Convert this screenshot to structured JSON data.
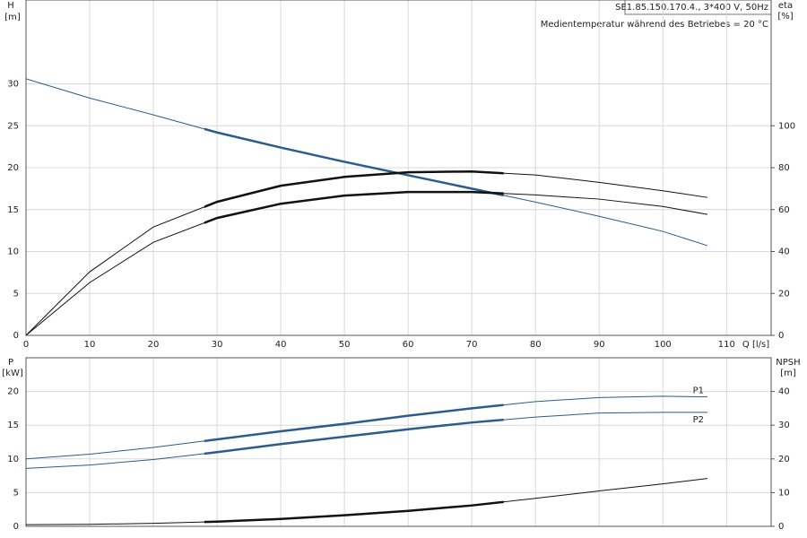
{
  "chart_data": [
    {
      "type": "line",
      "header": "SE1.85.150.170.4., 3*400 V, 50Hz",
      "note": "Medientemperatur während des Betriebes = 20 °C",
      "y_label": "H",
      "y_unit": "[m]",
      "y2_label": "eta",
      "y2_unit": "[%]",
      "x_label": "Q [l/s]",
      "x": [
        0,
        10,
        20,
        30,
        40,
        50,
        60,
        70,
        80,
        90,
        100,
        107
      ],
      "xlim": [
        0,
        117
      ],
      "xticks": [
        0,
        10,
        20,
        30,
        40,
        50,
        60,
        70,
        80,
        90,
        100,
        110
      ],
      "ylim": [
        0,
        40
      ],
      "yticks": [
        0,
        5,
        10,
        15,
        20,
        25,
        30
      ],
      "y2lim": [
        0,
        160
      ],
      "y2ticks": [
        0,
        20,
        40,
        60,
        80,
        100
      ],
      "grid": true,
      "highlight_range": [
        28,
        75
      ],
      "series": [
        {
          "color": "#2b5c8c",
          "values": [
            30.6,
            28.3,
            26.3,
            24.2,
            22.4,
            20.7,
            19.1,
            17.5,
            15.9,
            14.2,
            12.4,
            10.7
          ]
        },
        {
          "color": "#111111",
          "axis": "y2",
          "values": [
            0,
            30.3,
            51.7,
            63.7,
            71.4,
            75.6,
            77.8,
            78.2,
            76.5,
            73,
            69,
            65.8
          ]
        },
        {
          "color": "#111111",
          "axis": "y2",
          "values": [
            0,
            25.2,
            44.4,
            56,
            62.8,
            66.7,
            68.4,
            68.4,
            67,
            65,
            61.5,
            57.7
          ]
        }
      ]
    },
    {
      "type": "line",
      "y_label": "P",
      "y_unit": "[kW]",
      "y2_label": "NPSH",
      "y2_unit": "[m]",
      "x": [
        0,
        10,
        20,
        30,
        40,
        50,
        60,
        70,
        80,
        90,
        100,
        107
      ],
      "xlim": [
        0,
        117
      ],
      "xticks": [
        0,
        10,
        20,
        30,
        40,
        50,
        60,
        70,
        80,
        90,
        100,
        110
      ],
      "ylim": [
        0,
        25
      ],
      "yticks": [
        0,
        5,
        10,
        15,
        20
      ],
      "y2lim": [
        0,
        50
      ],
      "y2ticks": [
        0,
        10,
        20,
        30,
        40
      ],
      "grid": true,
      "highlight_range": [
        28,
        75
      ],
      "series": [
        {
          "name": "P1",
          "color": "#2b5c8c",
          "values": [
            10.0,
            10.7,
            11.7,
            12.9,
            14.1,
            15.2,
            16.4,
            17.5,
            18.5,
            19.1,
            19.3,
            19.2
          ]
        },
        {
          "name": "P2",
          "color": "#2b5c8c",
          "values": [
            8.6,
            9.1,
            9.9,
            11.0,
            12.2,
            13.3,
            14.4,
            15.4,
            16.2,
            16.8,
            16.9,
            16.9
          ]
        },
        {
          "color": "#111111",
          "axis": "y2",
          "values": [
            0.5,
            0.6,
            0.9,
            1.4,
            2.2,
            3.3,
            4.6,
            6.2,
            8.3,
            10.5,
            12.6,
            14.2
          ]
        }
      ]
    }
  ]
}
